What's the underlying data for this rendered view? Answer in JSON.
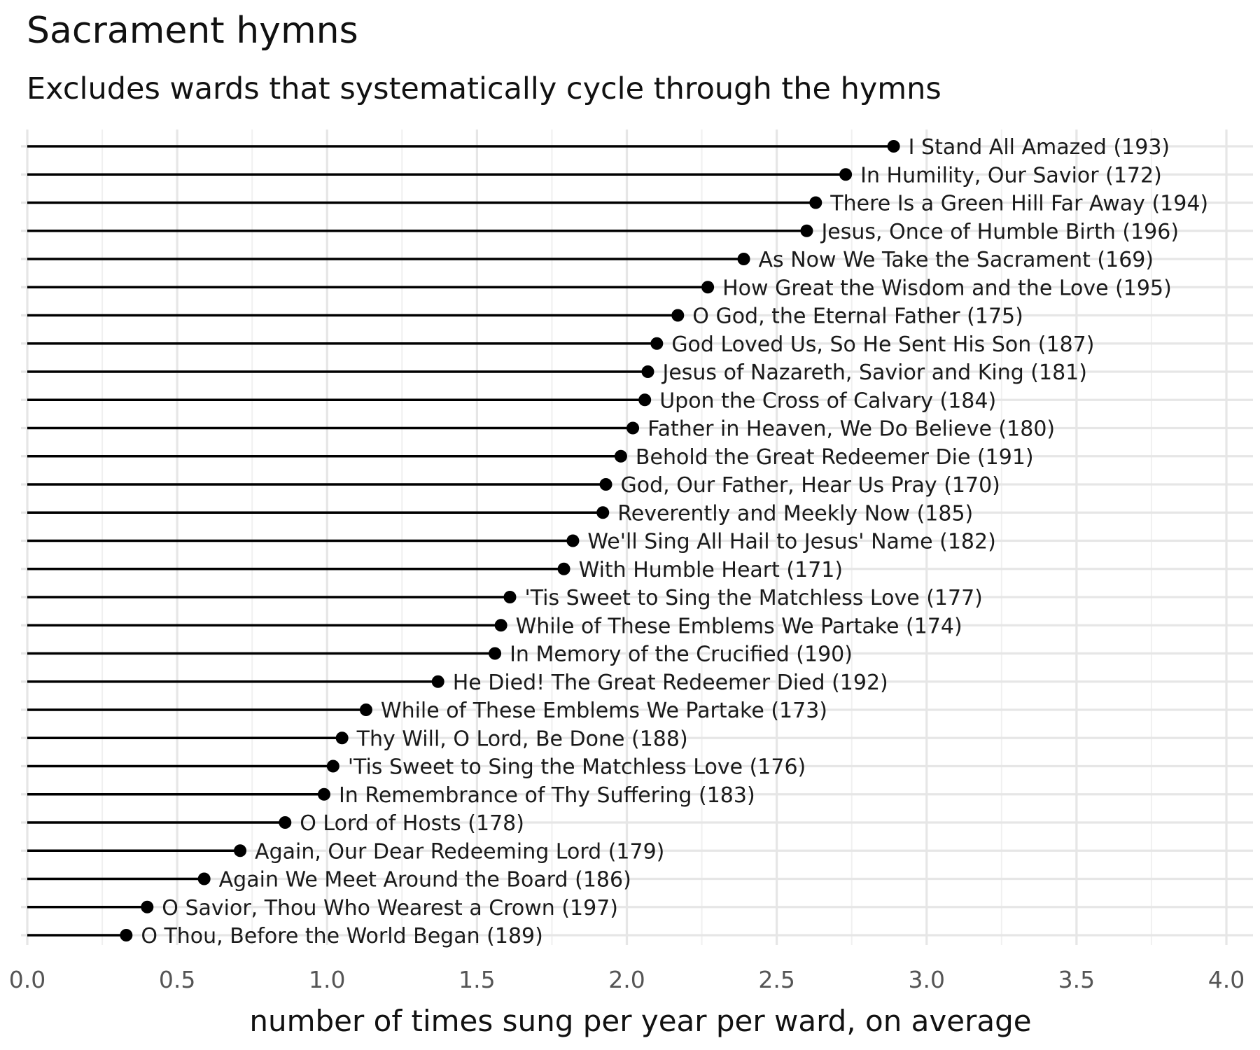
{
  "chart_data": {
    "type": "lollipop",
    "title": "Sacrament hymns",
    "subtitle": "Excludes wards that systematically cycle through the hymns",
    "xlabel": "number of times sung per year per ward, on average",
    "ylabel": "",
    "xlim": [
      0,
      4.0
    ],
    "xticks": [
      "0.0",
      "0.5",
      "1.0",
      "1.5",
      "2.0",
      "2.5",
      "3.0",
      "3.5",
      "4.0"
    ],
    "grid": true,
    "points": [
      {
        "label": "I Stand All Amazed (193)",
        "value": 2.89
      },
      {
        "label": "In Humility, Our Savior (172)",
        "value": 2.73
      },
      {
        "label": "There Is a Green Hill Far Away (194)",
        "value": 2.63
      },
      {
        "label": "Jesus, Once of Humble Birth (196)",
        "value": 2.6
      },
      {
        "label": "As Now We Take the Sacrament (169)",
        "value": 2.39
      },
      {
        "label": "How Great the Wisdom and the Love (195)",
        "value": 2.27
      },
      {
        "label": "O God, the Eternal Father (175)",
        "value": 2.17
      },
      {
        "label": "God Loved Us, So He Sent His Son (187)",
        "value": 2.1
      },
      {
        "label": "Jesus of Nazareth, Savior and King (181)",
        "value": 2.07
      },
      {
        "label": "Upon the Cross of Calvary (184)",
        "value": 2.06
      },
      {
        "label": "Father in Heaven, We Do Believe (180)",
        "value": 2.02
      },
      {
        "label": "Behold the Great Redeemer Die (191)",
        "value": 1.98
      },
      {
        "label": "God, Our Father, Hear Us Pray (170)",
        "value": 1.93
      },
      {
        "label": "Reverently and Meekly Now (185)",
        "value": 1.92
      },
      {
        "label": "We'll Sing All Hail to Jesus' Name (182)",
        "value": 1.82
      },
      {
        "label": "With Humble Heart (171)",
        "value": 1.79
      },
      {
        "label": "'Tis Sweet to Sing the Matchless Love (177)",
        "value": 1.61
      },
      {
        "label": "While of These Emblems We Partake (174)",
        "value": 1.58
      },
      {
        "label": "In Memory of the Crucified (190)",
        "value": 1.56
      },
      {
        "label": "He Died! The Great Redeemer Died (192)",
        "value": 1.37
      },
      {
        "label": "While of These Emblems We Partake (173)",
        "value": 1.13
      },
      {
        "label": "Thy Will, O Lord, Be Done (188)",
        "value": 1.05
      },
      {
        "label": "'Tis Sweet to Sing the Matchless Love (176)",
        "value": 1.02
      },
      {
        "label": "In Remembrance of Thy Suffering (183)",
        "value": 0.99
      },
      {
        "label": "O Lord of Hosts (178)",
        "value": 0.86
      },
      {
        "label": "Again, Our Dear Redeeming Lord (179)",
        "value": 0.71
      },
      {
        "label": "Again We Meet Around the Board (186)",
        "value": 0.59
      },
      {
        "label": "O Savior, Thou Who Wearest a Crown (197)",
        "value": 0.4
      },
      {
        "label": "O Thou, Before the World Began (189)",
        "value": 0.33
      }
    ]
  }
}
